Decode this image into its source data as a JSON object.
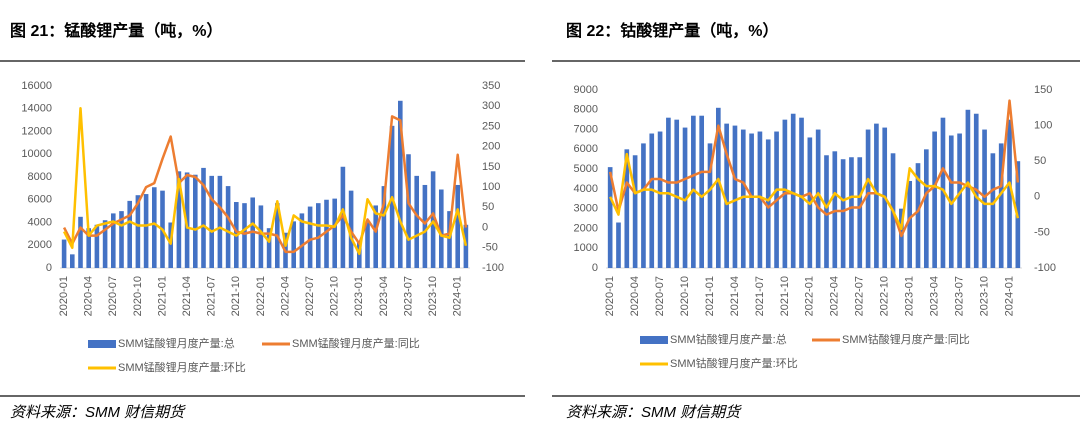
{
  "chart_data": [
    {
      "type": "bar_line",
      "title": "图 21：锰酸锂产量（吨，%）",
      "source": "资料来源：SMM 财信期货",
      "categories": [
        "2020-01",
        null,
        null,
        "2020-04",
        null,
        null,
        "2020-07",
        null,
        null,
        "2020-10",
        null,
        null,
        "2021-01",
        null,
        null,
        "2021-04",
        null,
        null,
        "2021-07",
        null,
        null,
        "2021-10",
        null,
        null,
        "2022-01",
        null,
        null,
        "2022-04",
        null,
        null,
        "2022-07",
        null,
        null,
        "2022-10",
        null,
        null,
        "2023-01",
        null,
        null,
        "2023-04",
        null,
        null,
        "2023-07",
        null,
        null,
        "2023-10",
        null,
        null,
        "2024-01",
        null
      ],
      "ylim": [
        0,
        16000
      ],
      "yticks": [
        0,
        2000,
        4000,
        6000,
        8000,
        10000,
        12000,
        14000,
        16000
      ],
      "y2lim": [
        -100,
        350
      ],
      "y2ticks": [
        -100,
        -50,
        0,
        50,
        100,
        150,
        200,
        250,
        300,
        350
      ],
      "series": [
        {
          "name": "SMM锰酸锂月度产量:总",
          "color": "#4472c4",
          "axis": "y",
          "kind": "bar",
          "values": [
            2500,
            1200,
            4500,
            3500,
            3800,
            4200,
            4800,
            5000,
            5900,
            6400,
            6500,
            7100,
            6800,
            4000,
            8500,
            8400,
            8200,
            8800,
            8100,
            8100,
            7200,
            5800,
            5700,
            6200,
            5500,
            3500,
            5700,
            3100,
            4100,
            4800,
            5400,
            5700,
            6000,
            6100,
            8900,
            6800,
            2300,
            4000,
            5500,
            7200,
            12500,
            14700,
            10000,
            8100,
            7300,
            8500,
            6900,
            5000,
            7300,
            3800
          ]
        },
        {
          "name": "SMM锰酸锂月度产量:同比",
          "color": "#ed7d31",
          "axis": "y2",
          "kind": "line",
          "values": [
            0,
            -40,
            0,
            -20,
            -20,
            -5,
            10,
            20,
            30,
            60,
            100,
            110,
            170,
            225,
            110,
            130,
            125,
            105,
            70,
            50,
            25,
            -10,
            -15,
            -10,
            -15,
            -15,
            -20,
            -60,
            -60,
            -45,
            -30,
            -25,
            -10,
            5,
            30,
            -10,
            -40,
            20,
            -10,
            60,
            275,
            265,
            60,
            30,
            10,
            35,
            -20,
            -15,
            180,
            0
          ]
        },
        {
          "name": "SMM锰酸锂月度产量:环比",
          "color": "#ffc000",
          "axis": "y2",
          "kind": "line",
          "values": [
            -10,
            -50,
            295,
            -20,
            5,
            10,
            15,
            5,
            15,
            5,
            5,
            10,
            -5,
            -40,
            120,
            0,
            -5,
            5,
            -10,
            0,
            -10,
            -20,
            -5,
            10,
            -10,
            -35,
            65,
            -45,
            30,
            15,
            10,
            5,
            5,
            2,
            45,
            -25,
            -65,
            70,
            35,
            30,
            75,
            15,
            -30,
            -20,
            -10,
            15,
            -20,
            -25,
            45,
            -45
          ]
        }
      ]
    },
    {
      "type": "bar_line",
      "title": "图 22：钴酸锂产量（吨，%）",
      "source": "资料来源：SMM 财信期货",
      "categories": [
        "2020-01",
        null,
        null,
        "2020-04",
        null,
        null,
        "2020-07",
        null,
        null,
        "2020-10",
        null,
        null,
        "2021-01",
        null,
        null,
        "2021-04",
        null,
        null,
        "2021-07",
        null,
        null,
        "2021-10",
        null,
        null,
        "2022-01",
        null,
        null,
        "2022-04",
        null,
        null,
        "2022-07",
        null,
        null,
        "2022-10",
        null,
        null,
        "2023-01",
        null,
        null,
        "2023-04",
        null,
        null,
        "2023-07",
        null,
        null,
        "2023-10",
        null,
        null,
        "2024-01",
        null
      ],
      "ylim": [
        0,
        9000
      ],
      "yticks": [
        0,
        1000,
        2000,
        3000,
        4000,
        5000,
        6000,
        7000,
        8000,
        9000
      ],
      "y2lim": [
        -100,
        150
      ],
      "y2ticks": [
        -100,
        -50,
        0,
        50,
        100,
        150
      ],
      "series": [
        {
          "name": "SMM钴酸锂月度产量:总",
          "color": "#4472c4",
          "axis": "y",
          "kind": "bar",
          "values": [
            5100,
            2300,
            6000,
            5700,
            6300,
            6800,
            6900,
            7600,
            7500,
            7100,
            7700,
            7700,
            6300,
            8100,
            7300,
            7200,
            7000,
            6800,
            6900,
            6500,
            6900,
            7500,
            7800,
            7600,
            6600,
            7000,
            5700,
            5900,
            5500,
            5600,
            5600,
            7000,
            7300,
            7100,
            5800,
            3000,
            4400,
            5300,
            6000,
            6900,
            7600,
            6700,
            6800,
            8000,
            7800,
            7000,
            5800,
            6300,
            7500,
            5400
          ]
        },
        {
          "name": "SMM钴酸锂月度产量:同比",
          "color": "#ed7d31",
          "axis": "y2",
          "kind": "line",
          "values": [
            35,
            -20,
            20,
            5,
            10,
            25,
            25,
            20,
            20,
            25,
            30,
            35,
            35,
            100,
            60,
            25,
            20,
            0,
            0,
            -15,
            -5,
            5,
            5,
            0,
            5,
            -15,
            -25,
            -20,
            -20,
            -15,
            -15,
            5,
            5,
            0,
            -20,
            -55,
            -30,
            -20,
            5,
            15,
            40,
            20,
            20,
            15,
            10,
            0,
            10,
            15,
            135,
            20
          ]
        },
        {
          "name": "SMM钴酸锂月度产量:环比",
          "color": "#ffc000",
          "axis": "y2",
          "kind": "line",
          "values": [
            0,
            -25,
            60,
            5,
            10,
            10,
            5,
            5,
            0,
            -5,
            10,
            0,
            10,
            25,
            -10,
            -5,
            0,
            0,
            0,
            -5,
            10,
            10,
            5,
            0,
            -10,
            5,
            -15,
            5,
            -5,
            0,
            0,
            25,
            5,
            0,
            -20,
            -45,
            40,
            25,
            15,
            15,
            10,
            -10,
            5,
            20,
            0,
            -10,
            -10,
            5,
            20,
            -30
          ]
        }
      ]
    }
  ]
}
